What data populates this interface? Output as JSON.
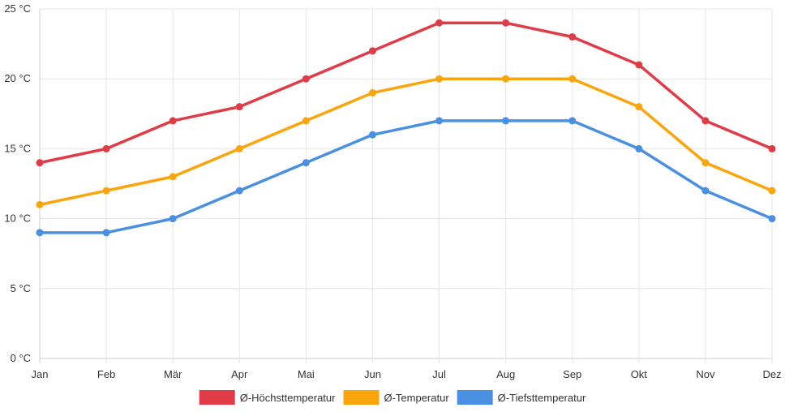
{
  "chart_data": {
    "type": "line",
    "categories": [
      "Jan",
      "Feb",
      "Mär",
      "Apr",
      "Mai",
      "Jun",
      "Jul",
      "Aug",
      "Sep",
      "Okt",
      "Nov",
      "Dez"
    ],
    "series": [
      {
        "name": "Ø-Höchsttemperatur",
        "color": "#e03c48",
        "values": [
          14,
          15,
          17,
          18,
          20,
          22,
          24,
          24,
          23,
          21,
          17,
          15
        ]
      },
      {
        "name": "Ø-Temperatur",
        "color": "#fba50c",
        "values": [
          11,
          12,
          13,
          15,
          17,
          19,
          20,
          20,
          20,
          18,
          14,
          12
        ]
      },
      {
        "name": "Ø-Tiefsttemperatur",
        "color": "#4a90e2",
        "values": [
          9,
          9,
          10,
          12,
          14,
          16,
          17,
          17,
          17,
          15,
          12,
          10
        ]
      }
    ],
    "y_ticks": [
      0,
      5,
      10,
      15,
      20,
      25
    ],
    "y_tick_labels": [
      "0 °C",
      "5 °C",
      "10 °C",
      "15 °C",
      "20 °C",
      "25 °C"
    ],
    "ylim": [
      0,
      25
    ],
    "grid": true,
    "legend_position": "bottom-center"
  }
}
